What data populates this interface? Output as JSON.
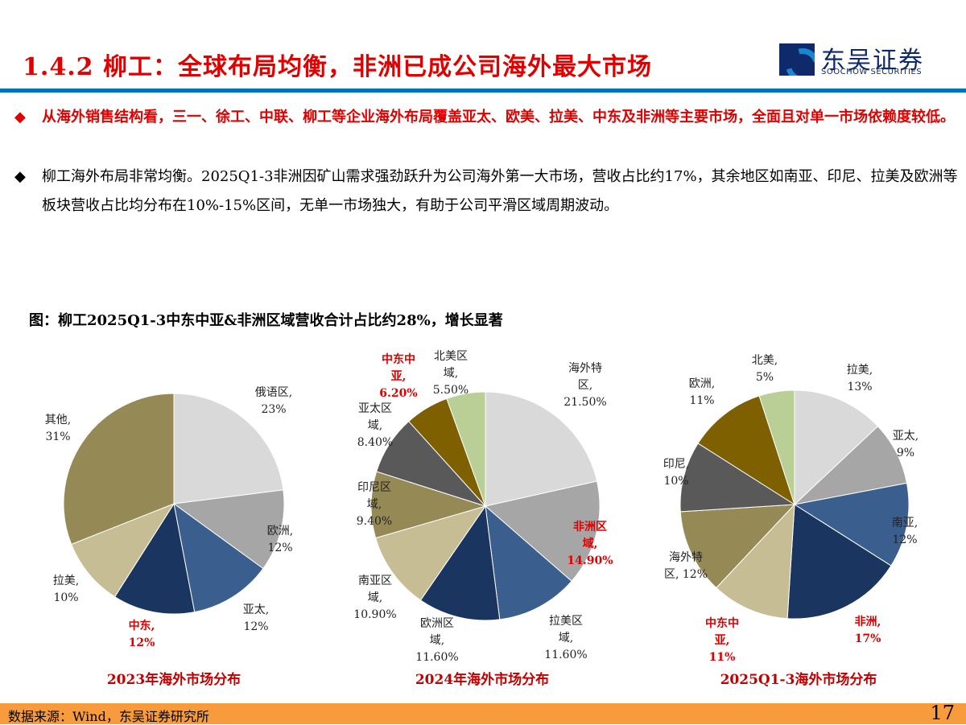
{
  "header": {
    "title": "1.4.2 柳工：全球布局均衡，非洲已成公司海外最大市场",
    "logo_cn": "东吴证券",
    "logo_en": "SOOCHOW SECURITIES"
  },
  "bullets": [
    {
      "icon": "◆",
      "text": "从海外销售结构看，三一、徐工、中联、柳工等企业海外布局覆盖亚太、欧美、拉美、中东及非洲等主要市场，全面且对单一市场依赖度较低。"
    },
    {
      "icon": "◆",
      "text": "柳工海外布局非常均衡。2025Q1-3非洲因矿山需求强劲跃升为公司海外第一大市场，营收占比约17%，其余地区如南亚、印尼、拉美及欧洲等板块营收占比均分布在10%-15%区间，无单一市场独大，有助于公司平滑区域周期波动。"
    }
  ],
  "figure_caption": "图：柳工2025Q1-3中东中亚&非洲区域营收合计占比约28%，增长显著",
  "chart_data": [
    {
      "type": "pie",
      "title": "2023年海外市场分布",
      "slices": [
        {
          "label": "俄语区,\n23%",
          "value": 23,
          "color": "#d9d9d9"
        },
        {
          "label": "欧洲,\n12%",
          "value": 12,
          "color": "#a6a6a6"
        },
        {
          "label": "亚太,\n12%",
          "value": 12,
          "color": "#3a5f8f"
        },
        {
          "label": "中东,\n12%",
          "value": 12,
          "color": "#1a3660",
          "highlight": true
        },
        {
          "label": "拉美,\n10%",
          "value": 10,
          "color": "#c6bd95"
        },
        {
          "label": "其他,\n31%",
          "value": 31,
          "color": "#958a55"
        }
      ]
    },
    {
      "type": "pie",
      "title": "2024年海外市场分布",
      "slices": [
        {
          "label": "海外特\n区,\n21.50%",
          "value": 21.5,
          "color": "#d9d9d9"
        },
        {
          "label": "非洲区\n域,\n14.90%",
          "value": 14.9,
          "color": "#a6a6a6",
          "highlight": true
        },
        {
          "label": "拉美区\n域,\n11.60%",
          "value": 11.6,
          "color": "#3a5f8f"
        },
        {
          "label": "欧洲区\n域,\n11.60%",
          "value": 11.6,
          "color": "#1a3660"
        },
        {
          "label": "南亚区\n域,\n10.90%",
          "value": 10.9,
          "color": "#c6bd95"
        },
        {
          "label": "印尼区\n域,\n9.40%",
          "value": 9.4,
          "color": "#958a55"
        },
        {
          "label": "亚太区\n域,\n8.40%",
          "value": 8.4,
          "color": "#595959"
        },
        {
          "label": "中东中\n亚,\n6.20%",
          "value": 6.2,
          "color": "#7f6000",
          "highlight": true
        },
        {
          "label": "北美区\n域,\n5.50%",
          "value": 5.5,
          "color": "#b9cf96"
        }
      ]
    },
    {
      "type": "pie",
      "title": "2025Q1-3海外市场分布",
      "slices": [
        {
          "label": "拉美,\n13%",
          "value": 13,
          "color": "#d9d9d9"
        },
        {
          "label": "亚太,\n9%",
          "value": 9,
          "color": "#a6a6a6"
        },
        {
          "label": "南亚,\n12%",
          "value": 12,
          "color": "#3a5f8f"
        },
        {
          "label": "非洲,\n17%",
          "value": 17,
          "color": "#1a3660",
          "highlight": true
        },
        {
          "label": "中东中\n亚,\n11%",
          "value": 11,
          "color": "#c6bd95",
          "highlight": true
        },
        {
          "label": "海外特\n区, 12%",
          "value": 12,
          "color": "#958a55"
        },
        {
          "label": "印尼,\n10%",
          "value": 10,
          "color": "#595959"
        },
        {
          "label": "欧洲,\n11%",
          "value": 11,
          "color": "#7f6000"
        },
        {
          "label": "北美,\n5%",
          "value": 5,
          "color": "#b9cf96"
        }
      ]
    }
  ],
  "footer": {
    "source": "数据来源：Wind，东吴证券研究所",
    "page": "17"
  }
}
